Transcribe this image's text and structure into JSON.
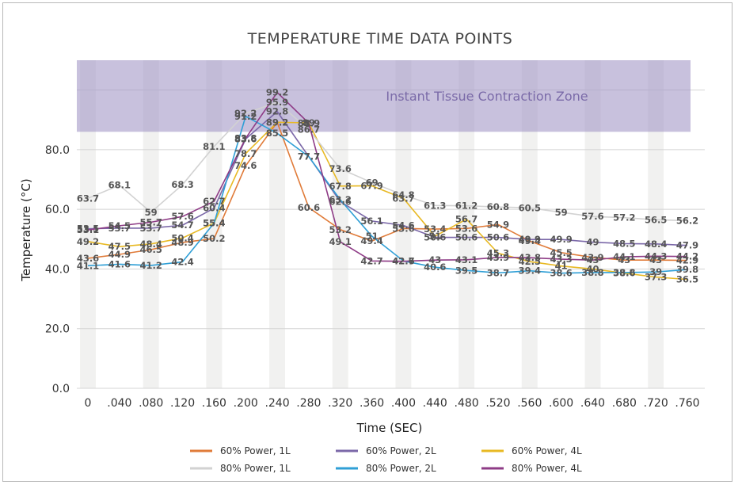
{
  "chart_data": {
    "type": "line",
    "title": "TEMPERATURE TIME DATA POINTS",
    "xlabel": "Time (SEC)",
    "ylabel": "Temperature (°C)",
    "ylim": [
      0,
      110
    ],
    "yticks": [
      0,
      20,
      40,
      60,
      80
    ],
    "ytick_labels": [
      "0.0",
      "20.0",
      "40.0",
      "60.0",
      "80.0"
    ],
    "categories": [
      "0",
      ".040",
      ".080",
      ".120",
      ".160",
      ".200",
      ".240",
      ".280",
      ".320",
      ".360",
      ".400",
      ".440",
      ".480",
      ".520",
      ".560",
      ".600",
      ".640",
      ".680",
      ".720",
      ".760"
    ],
    "zone": {
      "label": "Instant Tissue Contraction Zone",
      "from": 86,
      "to": 110,
      "color": "#a497c6"
    },
    "grid": true,
    "legend_position": "bottom",
    "series": [
      {
        "name": "60% Power, 1L",
        "color": "#e07b39",
        "values": [
          43.6,
          44.9,
          46.5,
          48.9,
          50.2,
          74.6,
          89.2,
          60.6,
          53.2,
          49.4,
          53.6,
          53.4,
          53.6,
          54.9,
          49.4,
          45.5,
          43.9,
          43.0,
          43.0,
          42.9
        ]
      },
      {
        "name": "60% Power, 2L",
        "color": "#7b68a8",
        "values": [
          53.5,
          53.7,
          53.7,
          54.7,
          60.4,
          83.6,
          92.8,
          77.7,
          62.6,
          56.1,
          54.6,
          50.6,
          50.6,
          50.6,
          49.9,
          49.9,
          49.0,
          48.5,
          48.4,
          47.9
        ]
      },
      {
        "name": "60% Power, 4L",
        "color": "#e8b923",
        "values": [
          49.2,
          47.5,
          48.4,
          50.4,
          55.4,
          78.7,
          89.2,
          89.0,
          67.8,
          67.9,
          63.7,
          51.0,
          56.7,
          45.3,
          42.5,
          41.0,
          40.0,
          38.6,
          37.3,
          36.5
        ]
      },
      {
        "name": "80% Power, 1L",
        "color": "#d2d2d2",
        "values": [
          63.7,
          68.1,
          59.0,
          68.3,
          81.1,
          92.2,
          95.9,
          86.7,
          73.6,
          69.0,
          64.8,
          61.3,
          61.2,
          60.8,
          60.5,
          59.0,
          57.6,
          57.2,
          56.5,
          56.2
        ]
      },
      {
        "name": "80% Power, 2L",
        "color": "#2f9fd6",
        "values": [
          41.1,
          41.6,
          41.2,
          42.4,
          55.4,
          91.2,
          85.5,
          77.7,
          63.2,
          51.0,
          42.7,
          40.6,
          39.5,
          38.7,
          39.4,
          38.6,
          38.8,
          38.8,
          39.0,
          39.8
        ]
      },
      {
        "name": "80% Power, 4L",
        "color": "#8e3b86",
        "values": [
          53.1,
          54.5,
          55.7,
          57.6,
          62.7,
          83.8,
          99.2,
          88.9,
          49.1,
          42.7,
          42.6,
          43.0,
          43.1,
          43.9,
          43.8,
          43.3,
          43.0,
          44.1,
          44.3,
          44.2
        ]
      }
    ]
  }
}
